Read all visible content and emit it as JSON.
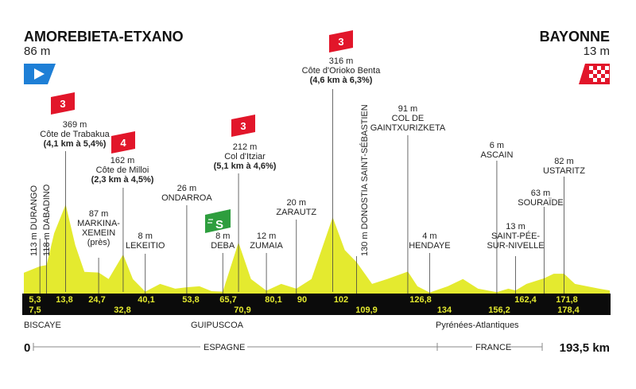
{
  "start": {
    "name": "AMOREBIETA-ETXANO",
    "alt": "86 m"
  },
  "finish": {
    "name": "BAYONNE",
    "alt": "13 m"
  },
  "distance_start": "0",
  "distance_total": "193,5 km",
  "regions": [
    "BISCAYE",
    "GUIPUSCOA",
    "Pyrénées-Atlantiques"
  ],
  "countries": [
    "ESPAGNE",
    "FRANCE"
  ],
  "colors": {
    "profile": "#e4ea2f",
    "bar": "#0b0b0b",
    "climb_badge": "#e2162a",
    "sprint_badge": "#2e9e3e",
    "start_flag": "#1e7fd6",
    "finish_flag": "#e2162a"
  },
  "climbs": [
    {
      "category": "3",
      "km": 13.8,
      "alt": "369 m",
      "name": "Côte de Trabakua",
      "detail": "(4,1 km à 5,4%)"
    },
    {
      "category": "4",
      "km": 32.8,
      "alt": "162 m",
      "name": "Côte de Milloi",
      "detail": "(2,3 km à 4,5%)"
    },
    {
      "category": "3",
      "km": 70.9,
      "alt": "212 m",
      "name": "Col d'Itziar",
      "detail": "(5,1 km à 4,6%)"
    },
    {
      "category": "3",
      "km": 102,
      "alt": "316 m",
      "name": "Côte d'Orioko Benta",
      "detail": "(4,6 km à 6,3%)"
    }
  ],
  "sprint": {
    "icon": "sprint-icon",
    "km": 65.7
  },
  "places": [
    {
      "km": 5.3,
      "lines": [
        "113 m DURANGO"
      ],
      "vertical": true
    },
    {
      "km": 7.5,
      "lines": [
        "118 m DABADINO"
      ],
      "vertical": true
    },
    {
      "km": 24.7,
      "lines": [
        "87 m",
        "MARKINA-",
        "XEMEIN",
        "(près)"
      ]
    },
    {
      "km": 40.1,
      "lines": [
        "8 m",
        "LEKEITIO"
      ]
    },
    {
      "km": 53.8,
      "lines": [
        "26 m",
        "ONDARROA"
      ]
    },
    {
      "km": 65.7,
      "lines": [
        "8 m",
        "DEBA"
      ]
    },
    {
      "km": 80.1,
      "lines": [
        "12 m",
        "ZUMAIA"
      ]
    },
    {
      "km": 90,
      "lines": [
        "20 m",
        "ZARAUTZ"
      ]
    },
    {
      "km": 109.9,
      "lines": [
        "130 m DONOSTIA SAINT-SÉBASTIEN"
      ],
      "vertical": true
    },
    {
      "km": 126.8,
      "lines": [
        "91 m",
        "COL DE",
        "GAINTXURIZKETA"
      ]
    },
    {
      "km": 134,
      "lines": [
        "4 m",
        "HENDAYE"
      ]
    },
    {
      "km": 156.2,
      "lines": [
        "6 m",
        "ASCAIN"
      ]
    },
    {
      "km": 162.4,
      "lines": [
        "13 m",
        "SAINT-PÉE-",
        "SUR-NIVELLE"
      ]
    },
    {
      "km": 171.8,
      "lines": [
        "63 m",
        "SOURAÏDE"
      ]
    },
    {
      "km": 178.4,
      "lines": [
        "82 m",
        "USTARITZ"
      ]
    }
  ],
  "km_marks_top": [
    "5,3",
    "13,8",
    "24,7",
    "40,1",
    "53,8",
    "65,7",
    "80,1",
    "90",
    "102",
    "126,8",
    "162,4",
    "171,8"
  ],
  "km_marks_bottom": [
    "7,5",
    "32,8",
    "70,9",
    "109,9",
    "134",
    "156,2",
    "178,4"
  ],
  "chart_data": {
    "type": "area",
    "x": [
      0,
      5.3,
      7.5,
      10,
      13.8,
      17,
      20,
      24.7,
      28,
      32.8,
      36,
      40.1,
      45,
      50,
      53.8,
      58,
      62,
      65.7,
      70.9,
      75,
      80.1,
      85,
      90,
      95,
      102,
      106,
      109.9,
      115,
      120,
      126.8,
      130,
      134,
      140,
      145,
      150,
      156.2,
      160,
      162.4,
      166,
      171.8,
      175,
      178.4,
      182,
      186,
      190,
      193.5
    ],
    "y": [
      86,
      113,
      118,
      250,
      369,
      200,
      90,
      87,
      60,
      162,
      60,
      8,
      40,
      20,
      26,
      30,
      10,
      8,
      212,
      60,
      12,
      40,
      20,
      60,
      316,
      180,
      130,
      40,
      60,
      91,
      30,
      4,
      30,
      60,
      20,
      6,
      20,
      13,
      40,
      63,
      82,
      82,
      40,
      30,
      20,
      13
    ],
    "xlim": [
      0,
      193.5
    ],
    "ylim": [
      0,
      1200
    ]
  }
}
